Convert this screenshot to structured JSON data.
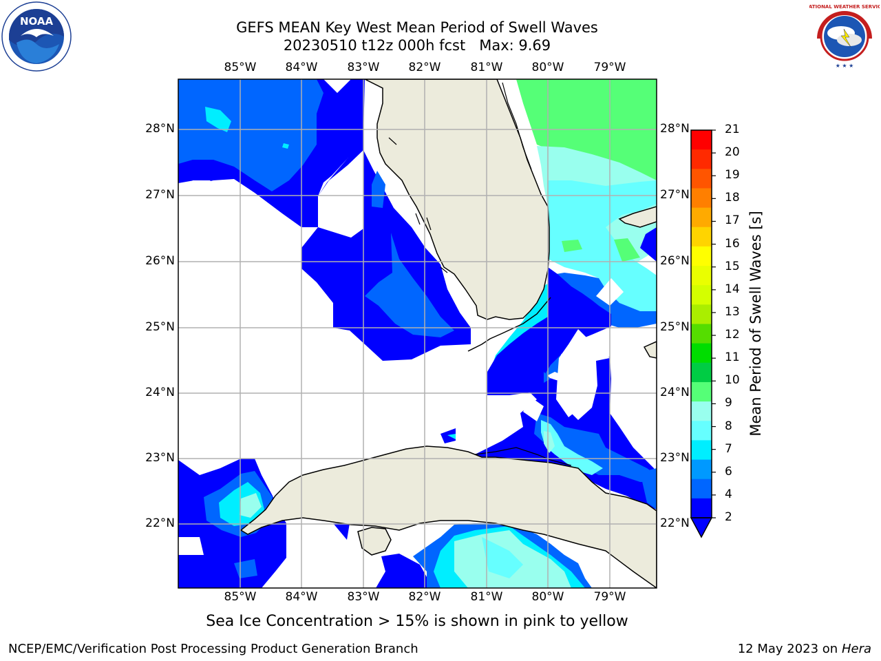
{
  "header": {
    "title_line1": "GEFS MEAN Key West Mean Period of Swell Waves",
    "title_line2": "20230510 t12z 000h fcst   Max: 9.69"
  },
  "logos": {
    "noaa_text": "NOAA",
    "nws_text": "NATIONAL WEATHER SERVICE"
  },
  "map": {
    "lon_ticks": [
      "85°W",
      "84°W",
      "83°W",
      "82°W",
      "81°W",
      "80°W",
      "79°W"
    ],
    "lat_ticks": [
      "28°N",
      "27°N",
      "26°N",
      "25°N",
      "24°N",
      "23°N",
      "22°N"
    ],
    "land_color": "#ecebdc",
    "grid_color": "#b0b0b0"
  },
  "colorbar": {
    "label": "Mean Period of Swell Waves [s]",
    "ticks": [
      "21",
      "20",
      "19",
      "18",
      "17",
      "16",
      "15",
      "14",
      "13",
      "12",
      "11",
      "10",
      "9",
      "8",
      "7",
      "6",
      "4",
      "2"
    ],
    "colors": [
      "#ff0000",
      "#ff2a00",
      "#ff5500",
      "#ff7f00",
      "#ffaa00",
      "#ffd400",
      "#ffff00",
      "#eaff00",
      "#d4ff00",
      "#aaee00",
      "#55dd00",
      "#00dd00",
      "#00cc44",
      "#55ff77",
      "#99ffee",
      "#66ffff",
      "#00eeff",
      "#0099ff",
      "#0066ff",
      "#0000ff"
    ]
  },
  "footer": {
    "ice_note": "Sea Ice Concentration > 15% is shown in pink to yellow",
    "credit": "NCEP/EMC/Verification Post Processing Product Generation Branch",
    "date": "12 May 2023 on",
    "host": "Hera"
  }
}
